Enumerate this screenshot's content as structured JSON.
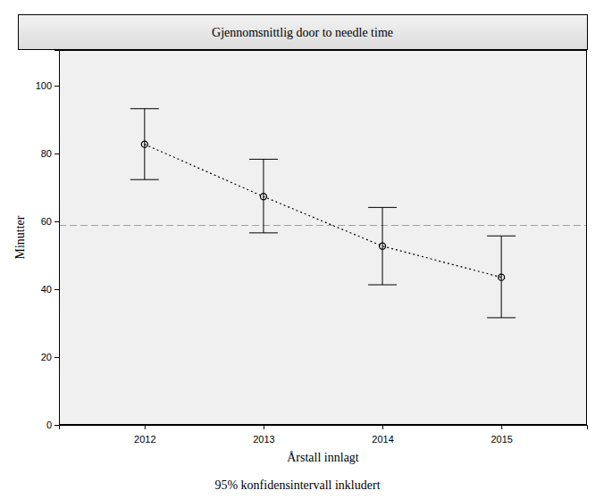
{
  "chart_data": {
    "type": "line",
    "title": "Gjennomsnittlig door to needle time",
    "x_label": "Årstall innlagt",
    "y_label": "Minutter",
    "note": "95% konfidensintervall inkludert",
    "categories": [
      "2012",
      "2013",
      "2014",
      "2015"
    ],
    "values": [
      82.7,
      67.3,
      52.7,
      43.5
    ],
    "ci_low": [
      72.3,
      56.6,
      41.3,
      31.6
    ],
    "ci_high": [
      93.2,
      78.3,
      64.1,
      55.7
    ],
    "reference_line": 58.8,
    "color": "#000000",
    "marker": "circle",
    "line_style": "dotted",
    "ylim": [
      0,
      110.5
    ],
    "yticks": [
      0,
      20,
      40,
      60,
      80,
      100
    ],
    "grid": false
  }
}
